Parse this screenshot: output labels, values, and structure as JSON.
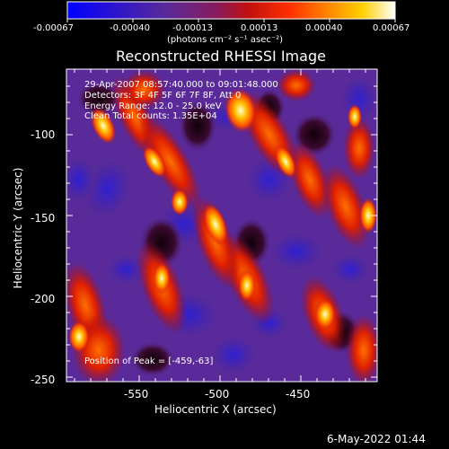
{
  "colorbar": {
    "tick_labels": [
      "-0.00067",
      "-0.00040",
      "-0.00013",
      "0.00013",
      "0.00040",
      "0.00067"
    ],
    "unit_label": "(photons cm⁻² s⁻¹ asec⁻²)",
    "gradient": [
      "#0000ff",
      "#5a2a9a",
      "#8a1a5a",
      "#c01010",
      "#ff3000",
      "#ff8a00",
      "#ffd000",
      "#ffffff"
    ]
  },
  "title": "Reconstructed RHESSI Image",
  "annotations": {
    "line1": "29-Apr-2007 08:57:40.000 to 09:01:48.000",
    "line2": "Detectors: 3F 4F 5F 6F 7F 8F, Att 0",
    "line3": "Energy Range: 12.0 - 25.0 keV",
    "line4": "Clean     Total counts: 1.35E+04",
    "peak": "Position of Peak = [-459,-63]"
  },
  "axes": {
    "xlabel": "Heliocentric X (arcsec)",
    "ylabel": "Heliocentric Y (arcsec)",
    "xticks": [
      "-550",
      "-500",
      "-450"
    ],
    "yticks": [
      "-100",
      "-150",
      "-200",
      "-250"
    ]
  },
  "footer": {
    "timestamp": "6-May-2022 01:44"
  }
}
